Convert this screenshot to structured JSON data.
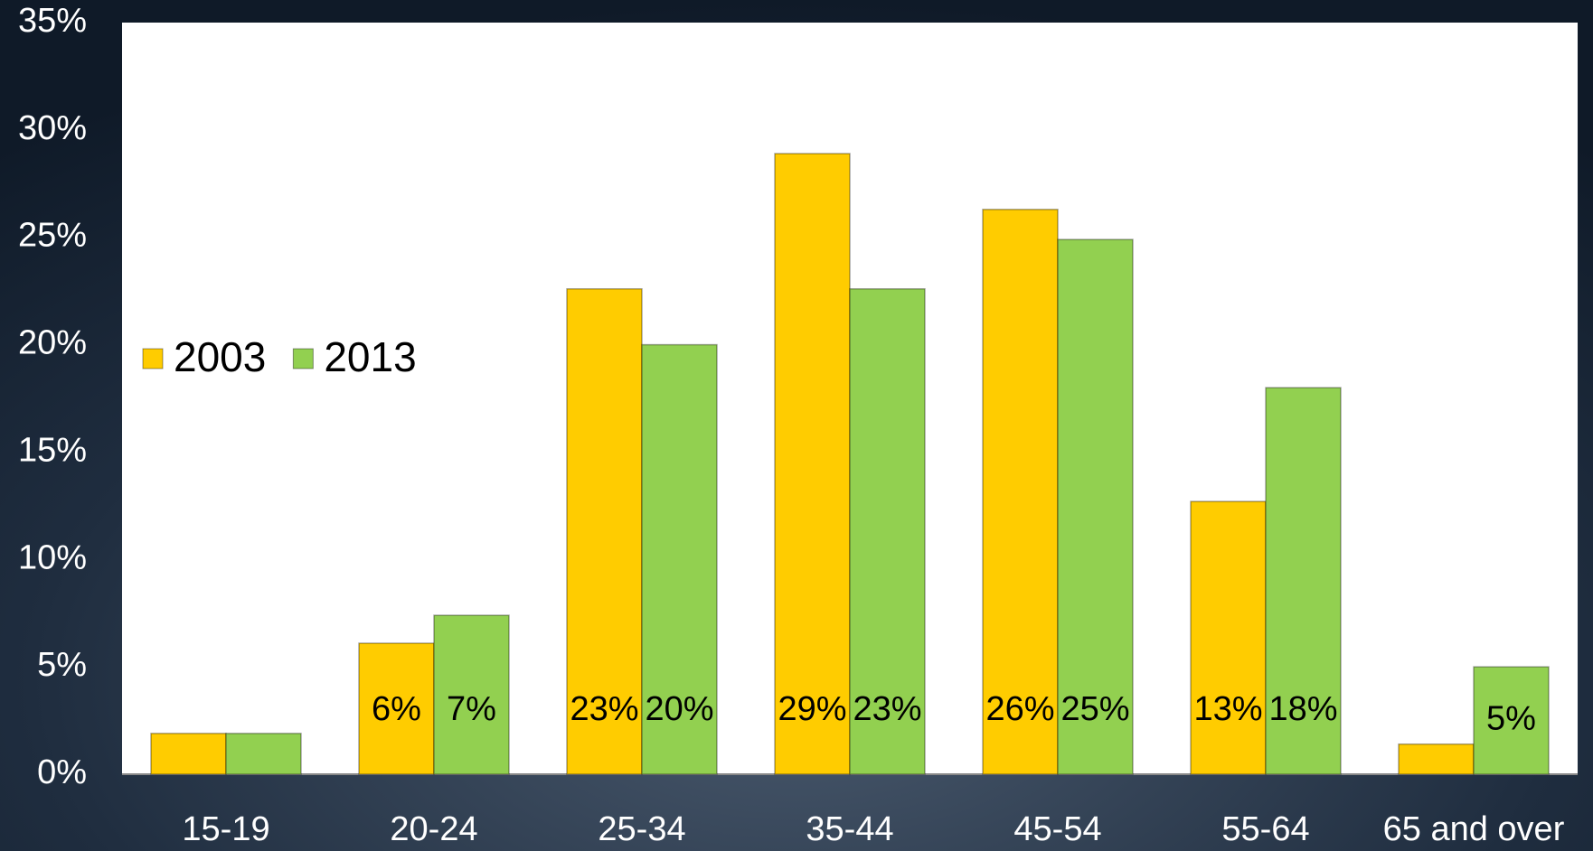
{
  "chart_data": {
    "type": "bar",
    "categories": [
      "15-19",
      "20-24",
      "25-34",
      "35-44",
      "45-54",
      "55-64",
      "65 and over"
    ],
    "series": [
      {
        "name": "2003",
        "color": "#ffcc00",
        "values": [
          1.9,
          6.1,
          22.6,
          28.9,
          26.3,
          12.7,
          1.4
        ],
        "value_labels": [
          null,
          "6%",
          "23%",
          "29%",
          "26%",
          "13%",
          null
        ]
      },
      {
        "name": "2013",
        "color": "#92d050",
        "values": [
          1.9,
          7.4,
          20.0,
          22.6,
          24.9,
          18.0,
          5.0
        ],
        "value_labels": [
          null,
          "7%",
          "20%",
          "23%",
          "25%",
          "18%",
          "5%"
        ]
      }
    ],
    "ylim": [
      0,
      35
    ],
    "yticks": [
      {
        "value": 0,
        "label": "0%"
      },
      {
        "value": 5,
        "label": "5%"
      },
      {
        "value": 10,
        "label": "10%"
      },
      {
        "value": 15,
        "label": "15%"
      },
      {
        "value": 20,
        "label": "20%"
      },
      {
        "value": 25,
        "label": "25%"
      },
      {
        "value": 30,
        "label": "30%"
      },
      {
        "value": 35,
        "label": "35%"
      }
    ],
    "grid": false,
    "legend": "left"
  }
}
